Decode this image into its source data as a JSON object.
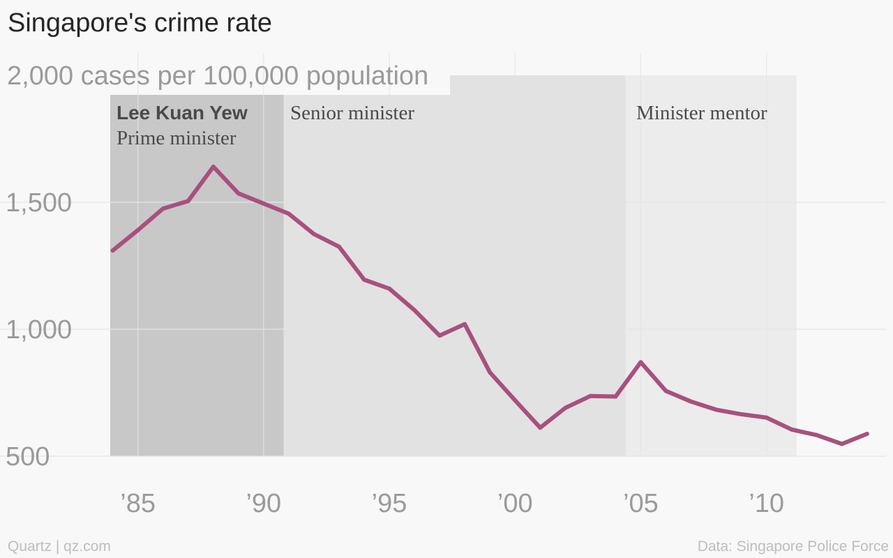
{
  "title": "Singapore's crime rate",
  "footer": {
    "left": "Quartz | qz.com",
    "right": "Data: Singapore Police Force"
  },
  "colors": {
    "line": "#a8507f",
    "band_prime_minister": "#c8c8c8",
    "band_senior_minister": "#e2e2e2",
    "band_minister_mentor": "#ececec",
    "grid": "#e4e4e4",
    "tick_text": "#9a9a9a"
  },
  "chart_data": {
    "type": "line",
    "title": "Singapore's crime rate",
    "ylabel": "2,000 cases per 100,000 population",
    "xlabel": "",
    "xlim": [
      1983.9,
      2014.2
    ],
    "ylim": [
      500,
      2000
    ],
    "y_ticks": [
      {
        "value": 500,
        "label": "500"
      },
      {
        "value": 1000,
        "label": "1,000"
      },
      {
        "value": 1500,
        "label": "1,500"
      }
    ],
    "x_ticks": [
      {
        "value": 1985,
        "label": "’85"
      },
      {
        "value": 1990,
        "label": "’90"
      },
      {
        "value": 1995,
        "label": "’95"
      },
      {
        "value": 2000,
        "label": "’00"
      },
      {
        "value": 2005,
        "label": "’05"
      },
      {
        "value": 2010,
        "label": "’10"
      }
    ],
    "grid": true,
    "series": [
      {
        "x": [
          1984,
          1985,
          1986,
          1987,
          1988,
          1989,
          1990,
          1991,
          1992,
          1993,
          1994,
          1995,
          1996,
          1997,
          1998,
          1999,
          2000,
          2001,
          2002,
          2003,
          2004,
          2005,
          2006,
          2007,
          2008,
          2009,
          2010,
          2011,
          2012,
          2013,
          2014
        ],
        "values": [
          1310,
          1390,
          1475,
          1505,
          1640,
          1535,
          1495,
          1455,
          1375,
          1325,
          1195,
          1160,
          1075,
          975,
          1020,
          830,
          720,
          612,
          690,
          737,
          735,
          870,
          757,
          715,
          683,
          665,
          652,
          605,
          583,
          548,
          588
        ]
      }
    ],
    "annotations": [
      {
        "name": "prime-minister",
        "x_start": 1983.9,
        "x_end": 1990.8,
        "label_bold": "Lee Kuan Yew",
        "label": "Prime minister"
      },
      {
        "name": "senior-minister",
        "x_start": 1990.8,
        "x_end": 2004.4,
        "label": "Senior minister"
      },
      {
        "name": "minister-mentor",
        "x_start": 2004.4,
        "x_end": 2011.2,
        "label": "Minister mentor"
      }
    ]
  }
}
